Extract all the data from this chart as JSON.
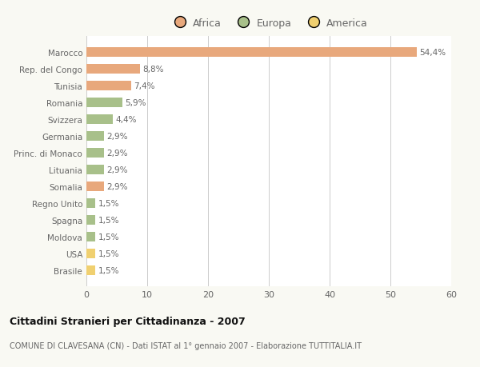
{
  "categories": [
    "Brasile",
    "USA",
    "Moldova",
    "Spagna",
    "Regno Unito",
    "Somalia",
    "Lituania",
    "Princ. di Monaco",
    "Germania",
    "Svizzera",
    "Romania",
    "Tunisia",
    "Rep. del Congo",
    "Marocco"
  ],
  "values": [
    1.5,
    1.5,
    1.5,
    1.5,
    1.5,
    2.9,
    2.9,
    2.9,
    2.9,
    4.4,
    5.9,
    7.4,
    8.8,
    54.4
  ],
  "labels": [
    "1,5%",
    "1,5%",
    "1,5%",
    "1,5%",
    "1,5%",
    "2,9%",
    "2,9%",
    "2,9%",
    "2,9%",
    "4,4%",
    "5,9%",
    "7,4%",
    "8,8%",
    "54,4%"
  ],
  "continents": [
    "America",
    "America",
    "Europa",
    "Europa",
    "Europa",
    "Africa",
    "Europa",
    "Europa",
    "Europa",
    "Europa",
    "Europa",
    "Africa",
    "Africa",
    "Africa"
  ],
  "colors": {
    "Africa": "#E8A87C",
    "Europa": "#A8C08A",
    "America": "#F0D070"
  },
  "xlim": [
    0,
    60
  ],
  "xticks": [
    0,
    10,
    20,
    30,
    40,
    50,
    60
  ],
  "title": "Cittadini Stranieri per Cittadinanza - 2007",
  "subtitle": "COMUNE DI CLAVESANA (CN) - Dati ISTAT al 1° gennaio 2007 - Elaborazione TUTTITALIA.IT",
  "bg_color": "#F9F9F3",
  "bar_bg_color": "#FFFFFF",
  "grid_color": "#CCCCCC",
  "text_color": "#666666",
  "title_color": "#111111",
  "subtitle_color": "#666666"
}
